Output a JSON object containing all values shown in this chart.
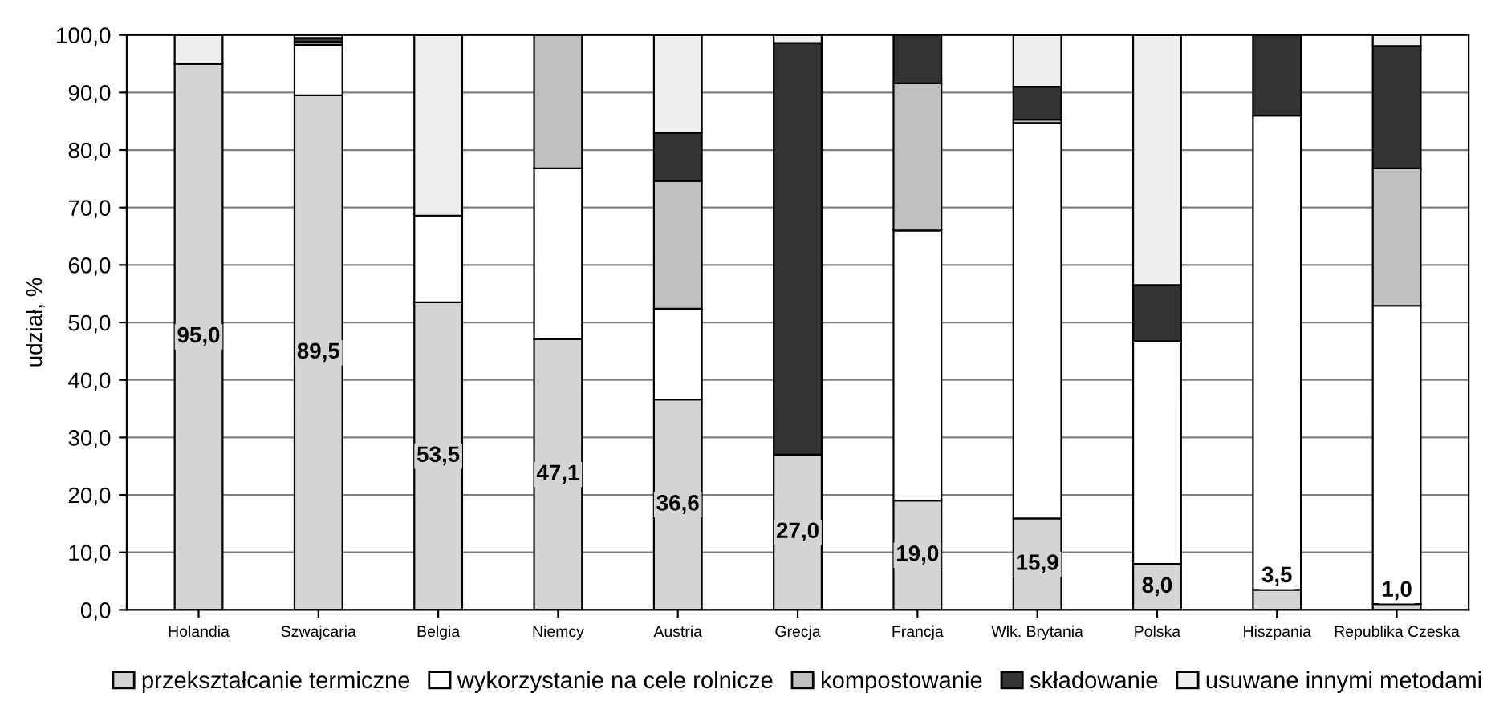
{
  "chart_data": {
    "type": "bar",
    "stacked": true,
    "ylabel": "udział, %",
    "categories": [
      "Holandia",
      "Szwajcaria",
      "Belgia",
      "Niemcy",
      "Austria",
      "Grecja",
      "Francja",
      "Wlk. Brytania",
      "Polska",
      "Hiszpania",
      "Republika Czeska"
    ],
    "series": [
      {
        "name": "przekształcanie termiczne",
        "color": "#d4d4d4",
        "values": [
          95.0,
          89.5,
          53.5,
          47.1,
          36.6,
          27.0,
          19.0,
          15.9,
          8.0,
          3.5,
          1.0
        ],
        "value_labels": [
          "95,0",
          "89,5",
          "53,5",
          "47,1",
          "36,6",
          "27,0",
          "19,0",
          "15,9",
          "8,0",
          "3,5",
          "1,0"
        ]
      },
      {
        "name": "wykorzystanie na cele rolnicze",
        "color": "#ffffff",
        "values": [
          null,
          8.8,
          15.1,
          29.7,
          15.8,
          null,
          47.0,
          68.8,
          38.7,
          82.5,
          51.9
        ]
      },
      {
        "name": "kompostowanie",
        "color": "#c0c0c0",
        "values": [
          null,
          0.5,
          null,
          23.2,
          22.2,
          null,
          25.6,
          0.6,
          null,
          null,
          23.9
        ]
      },
      {
        "name": "składowanie",
        "color": "#333333",
        "values": [
          null,
          0.7,
          null,
          null,
          8.4,
          71.6,
          8.4,
          5.7,
          9.8,
          14.0,
          21.3
        ]
      },
      {
        "name": "usuwane innymi metodami",
        "color": "#efefef",
        "values": [
          5.0,
          0.5,
          31.4,
          null,
          17.0,
          1.4,
          null,
          9.0,
          43.5,
          null,
          1.9
        ]
      }
    ],
    "ylim": [
      0,
      100
    ],
    "yticks": [
      {
        "value": 0,
        "label": "0,0"
      },
      {
        "value": 10,
        "label": "10,0"
      },
      {
        "value": 20,
        "label": "20,0"
      },
      {
        "value": 30,
        "label": "30,0"
      },
      {
        "value": 40,
        "label": "40,0"
      },
      {
        "value": 50,
        "label": "50,0"
      },
      {
        "value": 60,
        "label": "60,0"
      },
      {
        "value": 70,
        "label": "70,0"
      },
      {
        "value": 80,
        "label": "80,0"
      },
      {
        "value": 90,
        "label": "90,0"
      },
      {
        "value": 100,
        "label": "100,0"
      }
    ],
    "grid": "y",
    "legend": "bottom"
  }
}
